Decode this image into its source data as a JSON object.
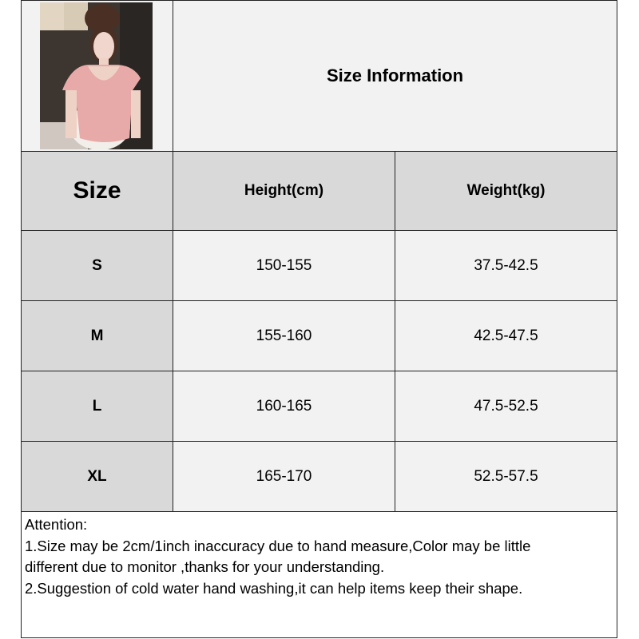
{
  "title": "Size Information",
  "photo": {
    "icon": "product-photo-woman-pink-top",
    "colors": {
      "top": "#e8a8a8",
      "background": "#3a3430"
    }
  },
  "table": {
    "headers": [
      "Size",
      "Height(cm)",
      "Weight(kg)"
    ],
    "rows": [
      {
        "size": "S",
        "height": "150-155",
        "weight": "37.5-42.5"
      },
      {
        "size": "M",
        "height": "155-160",
        "weight": "42.5-47.5"
      },
      {
        "size": "L",
        "height": "160-165",
        "weight": "47.5-52.5"
      },
      {
        "size": "XL",
        "height": "165-170",
        "weight": "52.5-57.5"
      }
    ]
  },
  "notes": {
    "heading": "Attention:",
    "lines": [
      "1.Size may be 2cm/1inch inaccuracy due to hand measure,Color may be little",
      "different due to monitor ,thanks for your understanding.",
      "2.Suggestion of cold water hand washing,it can help items keep their shape."
    ]
  },
  "colors": {
    "header_gray": "#d9d9d9",
    "cell_light": "#f2f2f2",
    "border": "#222222"
  }
}
